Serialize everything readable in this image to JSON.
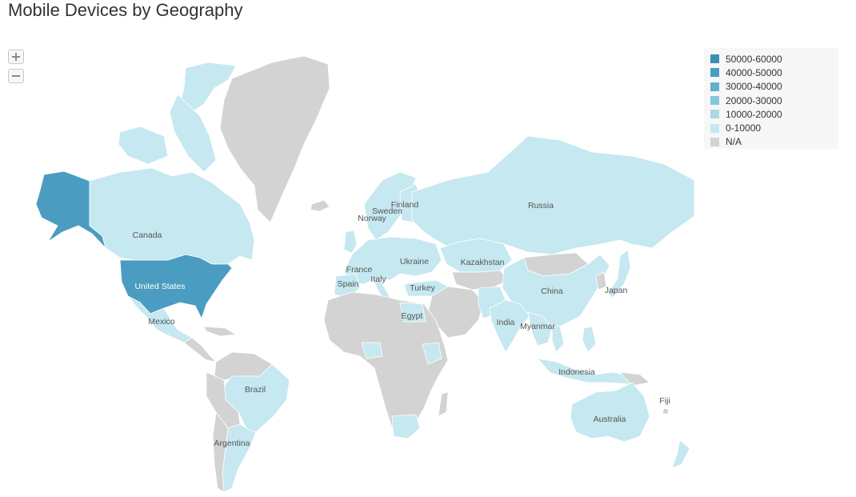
{
  "title": "Mobile Devices by Geography",
  "zoom": {
    "in_symbol": "+",
    "out_symbol": "−"
  },
  "legend": [
    {
      "label": "50000-60000",
      "color": "#3a8fb7"
    },
    {
      "label": "40000-50000",
      "color": "#4a9dc0"
    },
    {
      "label": "30000-40000",
      "color": "#5fb0cc"
    },
    {
      "label": "20000-30000",
      "color": "#86c6d9"
    },
    {
      "label": "10000-20000",
      "color": "#a9d8e6"
    },
    {
      "label": "0-10000",
      "color": "#c6e8f0"
    },
    {
      "label": "N/A",
      "color": "#d3d3d3"
    }
  ],
  "colors": {
    "us": "#4a9dc0",
    "low": "#c6e8f0",
    "na": "#d3d3d3"
  },
  "countries": {
    "canada": "Canada",
    "united_states": "United States",
    "mexico": "Mexico",
    "brazil": "Brazil",
    "argentina": "Argentina",
    "norway": "Norway",
    "sweden": "Sweden",
    "finland": "Finland",
    "france": "France",
    "spain": "Spain",
    "italy": "Italy",
    "ukraine": "Ukraine",
    "turkey": "Turkey",
    "egypt": "Egypt",
    "kazakhstan": "Kazakhstan",
    "russia": "Russia",
    "china": "China",
    "japan": "Japan",
    "india": "India",
    "myanmar": "Myanmar",
    "indonesia": "Indonesia",
    "australia": "Australia",
    "fiji": "Fiji"
  }
}
